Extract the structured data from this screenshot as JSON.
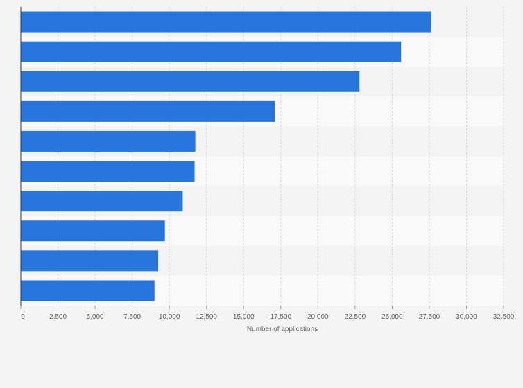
{
  "chart_data": {
    "type": "bar",
    "orientation": "horizontal",
    "title": "",
    "xlabel": "Number of applications",
    "ylabel": "",
    "xlim": [
      0,
      32500
    ],
    "x_ticks": [
      0,
      2500,
      5000,
      7500,
      10000,
      12500,
      15000,
      17500,
      20000,
      22500,
      25000,
      27500,
      30000,
      32500
    ],
    "x_tick_labels": [
      "0",
      "2,500",
      "5,000",
      "7,500",
      "10,000",
      "12,500",
      "15,000",
      "17,500",
      "20,000",
      "22,500",
      "25,000",
      "27,500",
      "30,000",
      "32,500"
    ],
    "categories": [
      "",
      "",
      "",
      "",
      "",
      "",
      "",
      "",
      "",
      ""
    ],
    "values": [
      27600,
      25600,
      22800,
      17100,
      11750,
      11700,
      10900,
      9700,
      9250,
      9000
    ],
    "grid": true,
    "legend": "none",
    "colors": {
      "bar": "#2876dd",
      "band_light": "#f9f9f9",
      "band_dark": "#f3f3f3",
      "grid": "#d9d9d9",
      "axis": "#333333",
      "tick_text": "#666666"
    }
  }
}
